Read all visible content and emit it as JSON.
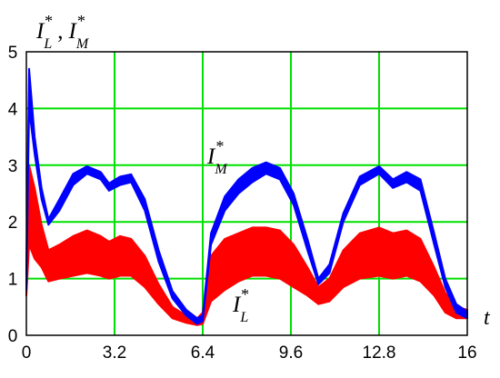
{
  "chart_data": {
    "type": "line",
    "xlabel": "t",
    "ylabel": "I*L , I*M",
    "ylabel_parts": {
      "main1": "I",
      "sup1": "*",
      "sub1": "L",
      "sep": ",",
      "main2": "I",
      "sup2": "*",
      "sub2": "M"
    },
    "xlim": [
      0,
      16
    ],
    "ylim": [
      0,
      5
    ],
    "x_ticks": [
      "0",
      "3.2",
      "6.4",
      "9.6",
      "12.8",
      "16"
    ],
    "y_ticks": [
      "0",
      "1",
      "2",
      "3",
      "4",
      "5"
    ],
    "grid": true,
    "grid_color": "#00e000",
    "series": [
      {
        "name": "I*M",
        "label_parts": {
          "main": "I",
          "sup": "*",
          "sub": "M"
        },
        "color": "#0000ff",
        "x": [
          0,
          0.1,
          0.3,
          0.55,
          0.8,
          1.2,
          1.7,
          2.2,
          2.7,
          3.0,
          3.4,
          3.8,
          4.3,
          4.8,
          5.3,
          5.8,
          6.2,
          6.4,
          6.7,
          7.2,
          7.7,
          8.2,
          8.7,
          9.2,
          9.7,
          10.2,
          10.6,
          11.0,
          11.5,
          12.1,
          12.8,
          13.3,
          13.8,
          14.3,
          14.8,
          15.2,
          15.6,
          16.0
        ],
        "values_low": [
          0.8,
          4.0,
          3.2,
          2.4,
          1.95,
          2.2,
          2.65,
          2.85,
          2.75,
          2.55,
          2.65,
          2.7,
          2.2,
          1.3,
          0.65,
          0.35,
          0.2,
          0.25,
          1.6,
          2.2,
          2.5,
          2.7,
          2.85,
          2.75,
          2.3,
          1.5,
          0.9,
          1.1,
          2.0,
          2.65,
          2.85,
          2.6,
          2.7,
          2.55,
          1.6,
          0.85,
          0.4,
          0.3
        ],
        "values_high": [
          1.2,
          4.7,
          3.5,
          2.6,
          2.05,
          2.4,
          2.85,
          2.98,
          2.88,
          2.68,
          2.8,
          2.84,
          2.4,
          1.5,
          0.78,
          0.45,
          0.3,
          0.35,
          1.8,
          2.45,
          2.75,
          2.95,
          3.05,
          2.95,
          2.5,
          1.7,
          1.0,
          1.25,
          2.15,
          2.8,
          2.98,
          2.75,
          2.88,
          2.75,
          1.8,
          1.0,
          0.55,
          0.42
        ]
      },
      {
        "name": "I*L",
        "label_parts": {
          "main": "I",
          "sup": "*",
          "sub": "L"
        },
        "color": "#ff0000",
        "x": [
          0,
          0.1,
          0.3,
          0.55,
          0.8,
          1.2,
          1.7,
          2.2,
          2.7,
          3.0,
          3.4,
          3.8,
          4.3,
          4.8,
          5.3,
          5.8,
          6.2,
          6.4,
          6.7,
          7.2,
          7.7,
          8.2,
          8.7,
          9.2,
          9.7,
          10.2,
          10.6,
          11.0,
          11.5,
          12.1,
          12.8,
          13.3,
          13.8,
          14.3,
          14.8,
          15.2,
          15.6,
          16.0
        ],
        "values_low": [
          0.7,
          1.6,
          1.35,
          1.2,
          0.95,
          1.0,
          1.05,
          1.1,
          1.05,
          1.0,
          1.05,
          1.05,
          0.85,
          0.55,
          0.3,
          0.22,
          0.18,
          0.2,
          0.6,
          0.8,
          0.95,
          1.05,
          1.05,
          1.0,
          0.85,
          0.7,
          0.55,
          0.6,
          0.85,
          1.0,
          1.05,
          1.0,
          1.05,
          0.95,
          0.7,
          0.4,
          0.3,
          0.3
        ],
        "values_high": [
          1.0,
          3.0,
          2.6,
          1.95,
          1.5,
          1.6,
          1.75,
          1.85,
          1.75,
          1.65,
          1.75,
          1.7,
          1.4,
          0.9,
          0.5,
          0.35,
          0.3,
          0.4,
          1.4,
          1.7,
          1.8,
          1.9,
          1.9,
          1.85,
          1.6,
          1.2,
          0.85,
          1.0,
          1.5,
          1.8,
          1.9,
          1.8,
          1.85,
          1.7,
          1.2,
          0.75,
          0.5,
          0.45
        ]
      }
    ]
  }
}
